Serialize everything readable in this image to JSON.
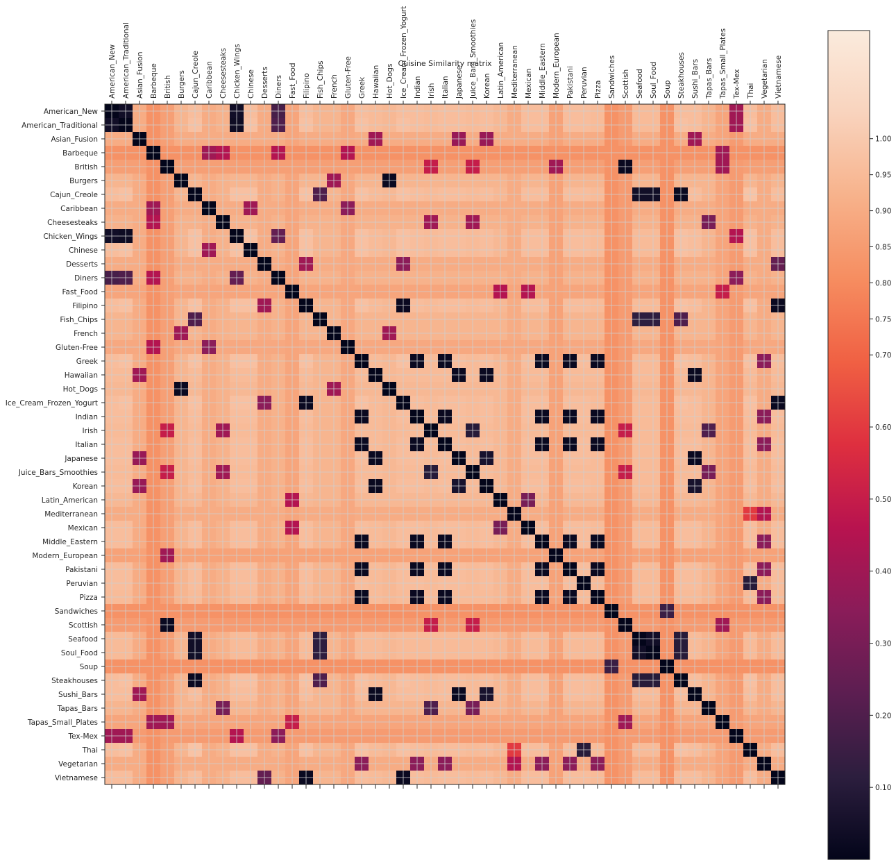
{
  "chart_data": {
    "type": "heatmap",
    "title": "Cuisine Similarity matrix",
    "categories": [
      "American_New",
      "American_Traditional",
      "Asian_Fusion",
      "Barbeque",
      "British",
      "Burgers",
      "Cajun_Creole",
      "Caribbean",
      "Cheesesteaks",
      "Chicken_Wings",
      "Chinese",
      "Desserts",
      "Diners",
      "Fast_Food",
      "Filipino",
      "Fish_Chips",
      "French",
      "Gluten-Free",
      "Greek",
      "Hawaiian",
      "Hot_Dogs",
      "Ice_Cream_Frozen_Yogurt",
      "Indian",
      "Irish",
      "Italian",
      "Japanese",
      "Juice_Bars_Smoothies",
      "Korean",
      "Latin_American",
      "Mediterranean",
      "Mexican",
      "Middle_Eastern",
      "Modern_European",
      "Pakistani",
      "Peruvian",
      "Pizza",
      "Sandwiches",
      "Scottish",
      "Seafood",
      "Soul_Food",
      "Soup",
      "Steakhouses",
      "Sushi_Bars",
      "Tapas_Bars",
      "Tapas_Small_Plates",
      "Tex-Mex",
      "Thai",
      "Vegetarian",
      "Vietnamese"
    ],
    "row_levels": [
      0.96,
      0.97,
      0.9,
      0.82,
      0.86,
      0.93,
      0.98,
      0.9,
      0.92,
      0.97,
      0.97,
      0.9,
      0.92,
      0.88,
      0.97,
      0.93,
      0.93,
      0.89,
      0.97,
      0.95,
      0.94,
      0.97,
      0.96,
      0.95,
      0.96,
      0.96,
      0.95,
      0.96,
      0.94,
      0.9,
      0.96,
      0.96,
      0.87,
      0.96,
      0.96,
      0.95,
      0.82,
      0.85,
      0.95,
      0.95,
      0.82,
      0.97,
      0.96,
      0.93,
      0.88,
      0.85,
      0.98,
      0.9,
      0.96
    ],
    "similar_pairs": [
      [
        0,
        1,
        0.04
      ],
      [
        0,
        9,
        0.04
      ],
      [
        1,
        9,
        0.03
      ],
      [
        0,
        12,
        0.18
      ],
      [
        1,
        12,
        0.2
      ],
      [
        9,
        12,
        0.25
      ],
      [
        0,
        45,
        0.4
      ],
      [
        1,
        45,
        0.4
      ],
      [
        9,
        45,
        0.45
      ],
      [
        12,
        45,
        0.35
      ],
      [
        2,
        19,
        0.4
      ],
      [
        2,
        25,
        0.38
      ],
      [
        2,
        27,
        0.38
      ],
      [
        2,
        42,
        0.4
      ],
      [
        19,
        25,
        0.02
      ],
      [
        19,
        27,
        0.02
      ],
      [
        19,
        42,
        0.02
      ],
      [
        25,
        27,
        0.06
      ],
      [
        25,
        42,
        0.02
      ],
      [
        27,
        42,
        0.06
      ],
      [
        3,
        7,
        0.4
      ],
      [
        3,
        8,
        0.45
      ],
      [
        3,
        12,
        0.45
      ],
      [
        3,
        17,
        0.45
      ],
      [
        4,
        37,
        0.02
      ],
      [
        4,
        23,
        0.5
      ],
      [
        4,
        26,
        0.5
      ],
      [
        4,
        32,
        0.4
      ],
      [
        4,
        44,
        0.4
      ],
      [
        37,
        23,
        0.5
      ],
      [
        37,
        26,
        0.5
      ],
      [
        37,
        44,
        0.4
      ],
      [
        5,
        20,
        0.02
      ],
      [
        5,
        16,
        0.4
      ],
      [
        16,
        20,
        0.4
      ],
      [
        6,
        38,
        0.04
      ],
      [
        6,
        39,
        0.04
      ],
      [
        6,
        41,
        0.02
      ],
      [
        38,
        39,
        0.04
      ],
      [
        38,
        41,
        0.1
      ],
      [
        39,
        41,
        0.1
      ],
      [
        6,
        15,
        0.2
      ],
      [
        15,
        38,
        0.12
      ],
      [
        15,
        39,
        0.12
      ],
      [
        15,
        41,
        0.2
      ],
      [
        7,
        10,
        0.4
      ],
      [
        7,
        17,
        0.35
      ],
      [
        8,
        23,
        0.4
      ],
      [
        8,
        26,
        0.4
      ],
      [
        8,
        43,
        0.3
      ],
      [
        23,
        26,
        0.1
      ],
      [
        23,
        43,
        0.2
      ],
      [
        26,
        43,
        0.3
      ],
      [
        11,
        14,
        0.4
      ],
      [
        11,
        21,
        0.35
      ],
      [
        11,
        48,
        0.25
      ],
      [
        14,
        21,
        0.02
      ],
      [
        14,
        48,
        0.02
      ],
      [
        21,
        48,
        0.02
      ],
      [
        13,
        28,
        0.45
      ],
      [
        13,
        30,
        0.45
      ],
      [
        28,
        30,
        0.3
      ],
      [
        34,
        46,
        0.1
      ],
      [
        18,
        22,
        0.02
      ],
      [
        18,
        24,
        0.02
      ],
      [
        18,
        31,
        0.02
      ],
      [
        18,
        33,
        0.02
      ],
      [
        18,
        35,
        0.02
      ],
      [
        22,
        24,
        0.02
      ],
      [
        22,
        31,
        0.02
      ],
      [
        22,
        33,
        0.02
      ],
      [
        22,
        35,
        0.02
      ],
      [
        24,
        31,
        0.02
      ],
      [
        24,
        33,
        0.02
      ],
      [
        24,
        35,
        0.02
      ],
      [
        31,
        33,
        0.02
      ],
      [
        31,
        35,
        0.02
      ],
      [
        33,
        35,
        0.02
      ],
      [
        29,
        46,
        0.6
      ],
      [
        29,
        47,
        0.45
      ],
      [
        18,
        47,
        0.35
      ],
      [
        22,
        47,
        0.35
      ],
      [
        24,
        47,
        0.35
      ],
      [
        31,
        47,
        0.35
      ],
      [
        33,
        47,
        0.35
      ],
      [
        35,
        47,
        0.35
      ],
      [
        36,
        40,
        0.15
      ],
      [
        3,
        44,
        0.4
      ],
      [
        13,
        44,
        0.5
      ]
    ],
    "colorbar": {
      "vmin": 0.0,
      "vmax": 1.15,
      "ticks": [
        "0.10",
        "0.20",
        "0.30",
        "0.40",
        "0.50",
        "0.60",
        "0.70",
        "0.75",
        "0.80",
        "0.85",
        "0.90",
        "0.95",
        "1.00"
      ],
      "colormap": [
        "#03051a",
        "#2c1e3e",
        "#5c1e51",
        "#8a1c59",
        "#b8134f",
        "#de2f3f",
        "#f06043",
        "#f68d60",
        "#f7b28b",
        "#f9d3bd",
        "#faebdd"
      ]
    },
    "xlabel": "",
    "ylabel": "",
    "grid": true,
    "legend": "colorbar-right"
  }
}
